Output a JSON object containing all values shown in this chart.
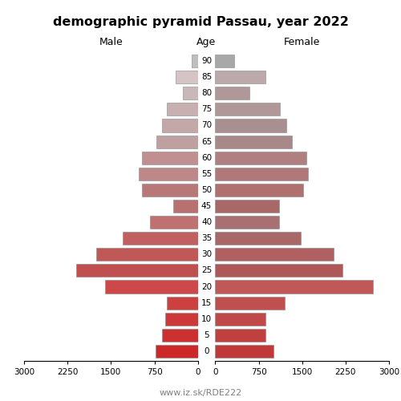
{
  "title": "demographic pyramid Passau, year 2022",
  "subtitle_left": "Male",
  "subtitle_center": "Age",
  "subtitle_right": "Female",
  "footnote": "www.iz.sk/RDE222",
  "age_labels": [
    "90",
    "85",
    "80",
    "75",
    "70",
    "65",
    "60",
    "55",
    "50",
    "45",
    "40",
    "35",
    "30",
    "25",
    "20",
    "15",
    "10",
    "5",
    "0"
  ],
  "age_positions": [
    90,
    85,
    80,
    75,
    70,
    65,
    60,
    55,
    50,
    45,
    40,
    35,
    30,
    25,
    20,
    15,
    10,
    5,
    0
  ],
  "male_values": [
    100,
    380,
    260,
    530,
    620,
    720,
    970,
    1020,
    960,
    420,
    820,
    1300,
    1750,
    2100,
    1600,
    530,
    570,
    620,
    730
  ],
  "female_values": [
    330,
    870,
    590,
    1120,
    1230,
    1330,
    1580,
    1600,
    1520,
    1100,
    1100,
    1480,
    2050,
    2200,
    2720,
    1200,
    870,
    870,
    1000
  ],
  "male_colors": [
    "#c0bfbf",
    "#d4c4c4",
    "#c9b8b8",
    "#c9b0b0",
    "#c4a8a8",
    "#bfa0a0",
    "#c09090",
    "#be8888",
    "#b87878",
    "#b87070",
    "#c07070",
    "#c06060",
    "#c05858",
    "#c05050",
    "#cd4848",
    "#cd4040",
    "#cd3838",
    "#cd3030",
    "#cd2828"
  ],
  "female_colors": [
    "#a8a8a8",
    "#bcaaaa",
    "#b09898",
    "#b09898",
    "#a89090",
    "#a88888",
    "#b08080",
    "#b07878",
    "#b07070",
    "#a86868",
    "#a87070",
    "#a86868",
    "#b06060",
    "#b05858",
    "#c05858",
    "#c05050",
    "#c04848",
    "#c04040",
    "#c03838"
  ],
  "xlim": 3000,
  "xticks": [
    0,
    750,
    1500,
    2250,
    3000
  ],
  "xtick_labels": [
    "0",
    "750",
    "1500",
    "2250",
    "3000"
  ],
  "background_color": "#ffffff"
}
